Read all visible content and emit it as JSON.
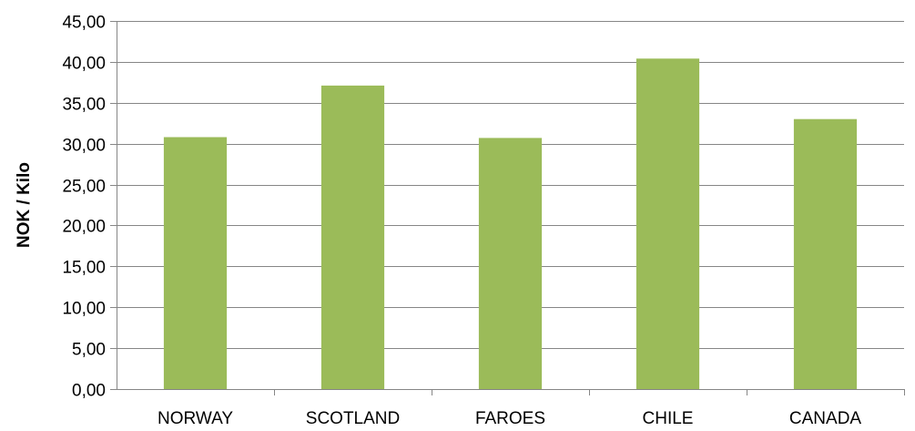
{
  "chart_data": {
    "type": "bar",
    "categories": [
      "NORWAY",
      "SCOTLAND",
      "FAROES",
      "CHILE",
      "CANADA"
    ],
    "values": [
      30.8,
      37.1,
      30.7,
      40.4,
      33.0
    ],
    "ylabel": "NOK / Kilo",
    "xlabel": "",
    "ylim": [
      0,
      45
    ],
    "ytick_step": 5,
    "ytick_labels": [
      "0,00",
      "5,00",
      "10,00",
      "15,00",
      "20,00",
      "25,00",
      "30,00",
      "35,00",
      "40,00",
      "45,00"
    ],
    "grid": true,
    "legend": "none",
    "colors": {
      "bar": "#9BBB59",
      "grid": "#868686",
      "text": "#000000"
    }
  }
}
